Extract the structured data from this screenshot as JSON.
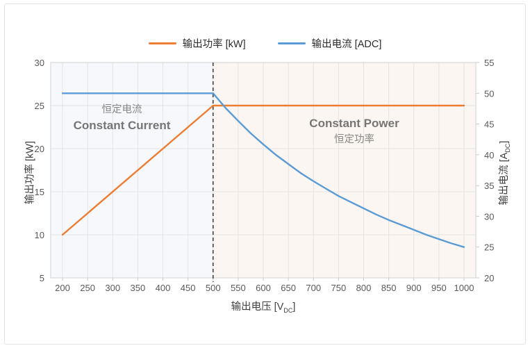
{
  "legend": {
    "items": [
      {
        "label": "输出功率 [kW]",
        "color": "#ED7D31"
      },
      {
        "label": "输出电流 [ADC]",
        "color": "#5B9BD5"
      }
    ]
  },
  "chart_data": {
    "type": "line",
    "x_axis": {
      "title_main": "输出电压 [V",
      "title_sub": "DC",
      "title_close": "]",
      "min": 200,
      "max": 1000,
      "ticks": [
        200,
        250,
        300,
        350,
        400,
        450,
        500,
        550,
        600,
        650,
        700,
        750,
        800,
        850,
        900,
        950,
        1000
      ]
    },
    "y_left": {
      "title": "输出功率 [kW]",
      "min": 5,
      "max": 30,
      "ticks": [
        5,
        10,
        15,
        20,
        25,
        30
      ]
    },
    "y_right": {
      "title_main": "输出电流 [A",
      "title_sub": "DC",
      "title_close": "]",
      "min": 20,
      "max": 55,
      "ticks": [
        20,
        25,
        30,
        35,
        40,
        45,
        50,
        55
      ]
    },
    "series": [
      {
        "name": "输出功率 [kW]",
        "axis": "left",
        "color": "#ED7D31",
        "points": [
          [
            200,
            10
          ],
          [
            500,
            25
          ],
          [
            1000,
            25
          ]
        ]
      },
      {
        "name": "输出电流 [ADC]",
        "axis": "right",
        "color": "#5B9BD5",
        "points": [
          [
            200,
            50
          ],
          [
            500,
            50
          ],
          [
            525,
            47.6
          ],
          [
            550,
            45.5
          ],
          [
            575,
            43.5
          ],
          [
            600,
            41.7
          ],
          [
            625,
            40.0
          ],
          [
            650,
            38.5
          ],
          [
            675,
            37.0
          ],
          [
            700,
            35.7
          ],
          [
            725,
            34.5
          ],
          [
            750,
            33.3
          ],
          [
            775,
            32.3
          ],
          [
            800,
            31.3
          ],
          [
            825,
            30.3
          ],
          [
            850,
            29.4
          ],
          [
            875,
            28.6
          ],
          [
            900,
            27.8
          ],
          [
            925,
            27.0
          ],
          [
            950,
            26.3
          ],
          [
            975,
            25.6
          ],
          [
            1000,
            25
          ]
        ]
      }
    ],
    "vline": {
      "x": 500,
      "color": "#404040",
      "style": "dashed"
    },
    "annotations": {
      "region_left": {
        "zh": "恒定电流",
        "en": "Constant Current"
      },
      "region_right": {
        "en": "Constant Power",
        "zh": "恒定功率"
      }
    },
    "colors": {
      "plot_bg_left": "#f7f8fb",
      "plot_bg_right": "#fbf6f1",
      "grid": "#e3e3e3",
      "plot_border": "#d2d2d2",
      "tick_text": "#595959",
      "tick_mark": "#c9c9c9"
    },
    "grid": true,
    "legend_position": "top"
  }
}
